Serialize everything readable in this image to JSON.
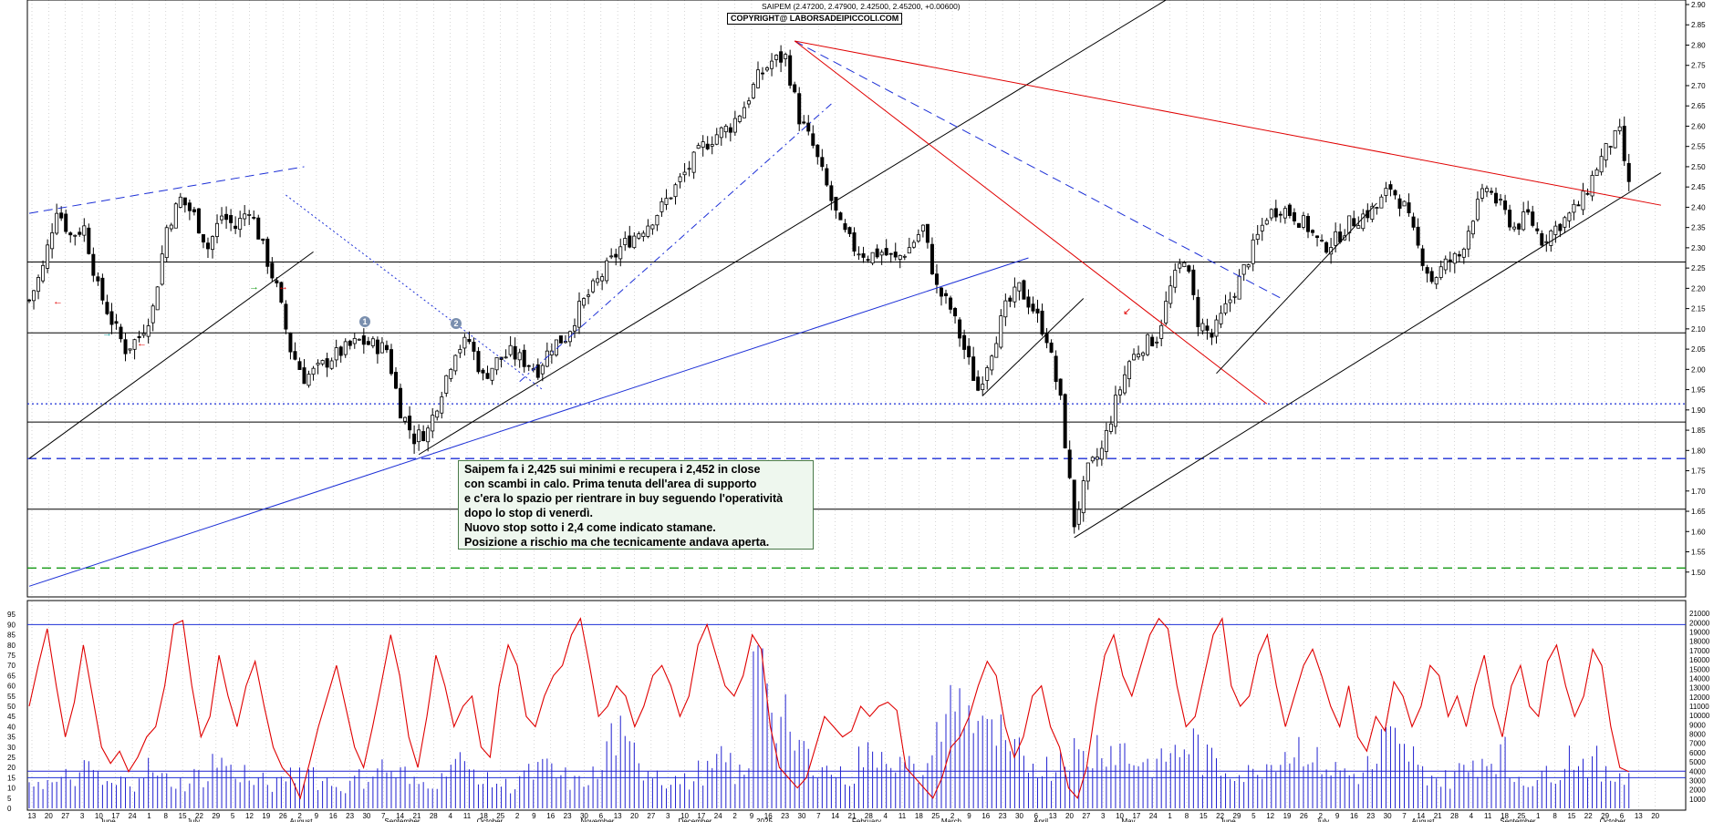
{
  "header": {
    "title": "SAIPEM (2.47200, 2.47900, 2.42500, 2.45200, +0.00600)",
    "copyright": "COPYRIGHT@ LABORSADEIPICCOLI.COM"
  },
  "annotation": {
    "lines": [
      "Saipem fa i 2,425 sui minimi e recupera i 2,452 in close",
      "con scambi in calo. Prima tenuta dell'area di supporto",
      "e c'era lo spazio per rientrare in buy seguendo l'operatività",
      "dopo lo stop di venerdì.",
      "Nuovo stop sotto i 2,4 come indicato stamane.",
      "Posizione a rischio ma che tecnicamente andava aperta."
    ]
  },
  "markers": [
    "1",
    "2"
  ],
  "colors": {
    "background": "#ffffff",
    "candles": "#000000",
    "oscillator": "#e00000",
    "volume": "#2020d0",
    "trend_black": "#000000",
    "trend_red": "#e00000",
    "trend_blue": "#1c2fd6",
    "support_dotted_blue": "#1c2fd6",
    "support_green_dashed": "#159a15",
    "grid": "#bbbbbb"
  },
  "chart_data": [
    {
      "type": "candlestick",
      "title": "SAIPEM",
      "ylim": [
        1.45,
        2.9
      ],
      "yticks": [
        1.5,
        1.55,
        1.6,
        1.65,
        1.7,
        1.75,
        1.8,
        1.85,
        1.9,
        1.95,
        2.0,
        2.05,
        2.1,
        2.15,
        2.2,
        2.25,
        2.3,
        2.35,
        2.4,
        2.45,
        2.5,
        2.55,
        2.6,
        2.65,
        2.7,
        2.75,
        2.8,
        2.85,
        2.9
      ],
      "months": [
        "June",
        "July",
        "August",
        "September",
        "October",
        "November",
        "December",
        "2025",
        "February",
        "March",
        "April",
        "May",
        "June",
        "July",
        "August",
        "September",
        "October"
      ],
      "day_ticks": [
        "13",
        "20",
        "27",
        "3",
        "10",
        "17",
        "24",
        "1",
        "8",
        "15",
        "22",
        "29",
        "5",
        "12",
        "19",
        "26",
        "2",
        "9",
        "16",
        "23",
        "30",
        "7",
        "14",
        "21",
        "28",
        "4",
        "11",
        "18",
        "25",
        "2",
        "9",
        "16",
        "23",
        "30",
        "6",
        "13",
        "20",
        "27",
        "3",
        "10",
        "17",
        "24",
        "2",
        "9",
        "16",
        "23",
        "30",
        "7",
        "14",
        "21",
        "28",
        "4",
        "11",
        "18",
        "25",
        "2",
        "9",
        "16",
        "23",
        "30",
        "6",
        "13",
        "20",
        "27",
        "3",
        "10",
        "17",
        "24",
        "1",
        "8",
        "15",
        "22",
        "29",
        "5",
        "12",
        "19",
        "26",
        "2",
        "9",
        "16",
        "23",
        "30",
        "7",
        "14",
        "21",
        "28",
        "4",
        "11",
        "18",
        "25",
        "1",
        "8",
        "15",
        "22",
        "29",
        "6",
        "13",
        "20"
      ],
      "close_path": [
        [
          0,
          2.17
        ],
        [
          3,
          2.25
        ],
        [
          6,
          2.4
        ],
        [
          9,
          2.33
        ],
        [
          12,
          2.35
        ],
        [
          15,
          2.2
        ],
        [
          18,
          2.12
        ],
        [
          21,
          2.05
        ],
        [
          24,
          2.08
        ],
        [
          27,
          2.15
        ],
        [
          30,
          2.35
        ],
        [
          33,
          2.42
        ],
        [
          36,
          2.38
        ],
        [
          39,
          2.3
        ],
        [
          42,
          2.38
        ],
        [
          45,
          2.35
        ],
        [
          48,
          2.4
        ],
        [
          51,
          2.3
        ],
        [
          54,
          2.2
        ],
        [
          57,
          2.05
        ],
        [
          60,
          1.98
        ],
        [
          63,
          2.0
        ],
        [
          66,
          2.03
        ],
        [
          69,
          2.05
        ],
        [
          72,
          2.07
        ],
        [
          75,
          2.06
        ],
        [
          78,
          2.05
        ],
        [
          81,
          1.9
        ],
        [
          84,
          1.83
        ],
        [
          87,
          1.85
        ],
        [
          90,
          1.95
        ],
        [
          93,
          2.05
        ],
        [
          96,
          2.07
        ],
        [
          99,
          1.98
        ],
        [
          102,
          2.02
        ],
        [
          105,
          2.04
        ],
        [
          108,
          2.02
        ],
        [
          111,
          2.0
        ],
        [
          114,
          2.06
        ],
        [
          117,
          2.08
        ],
        [
          120,
          2.15
        ],
        [
          123,
          2.2
        ],
        [
          126,
          2.25
        ],
        [
          129,
          2.3
        ],
        [
          132,
          2.33
        ],
        [
          135,
          2.36
        ],
        [
          138,
          2.4
        ],
        [
          141,
          2.45
        ],
        [
          144,
          2.5
        ],
        [
          147,
          2.55
        ],
        [
          150,
          2.58
        ],
        [
          153,
          2.6
        ],
        [
          156,
          2.65
        ],
        [
          159,
          2.72
        ],
        [
          162,
          2.76
        ],
        [
          165,
          2.77
        ],
        [
          168,
          2.62
        ],
        [
          171,
          2.55
        ],
        [
          174,
          2.45
        ],
        [
          177,
          2.35
        ],
        [
          180,
          2.3
        ],
        [
          183,
          2.28
        ],
        [
          186,
          2.29
        ],
        [
          189,
          2.27
        ],
        [
          192,
          2.3
        ],
        [
          195,
          2.35
        ],
        [
          198,
          2.2
        ],
        [
          201,
          2.15
        ],
        [
          204,
          2.05
        ],
        [
          207,
          1.95
        ],
        [
          210,
          2.05
        ],
        [
          213,
          2.15
        ],
        [
          216,
          2.2
        ],
        [
          219,
          2.15
        ],
        [
          222,
          2.08
        ],
        [
          225,
          1.92
        ],
        [
          228,
          1.62
        ],
        [
          231,
          1.75
        ],
        [
          234,
          1.8
        ],
        [
          237,
          1.92
        ],
        [
          240,
          2.02
        ],
        [
          243,
          2.06
        ],
        [
          246,
          2.08
        ],
        [
          249,
          2.2
        ],
        [
          252,
          2.28
        ],
        [
          255,
          2.12
        ],
        [
          258,
          2.08
        ],
        [
          261,
          2.15
        ],
        [
          264,
          2.22
        ],
        [
          267,
          2.3
        ],
        [
          270,
          2.38
        ],
        [
          273,
          2.4
        ],
        [
          276,
          2.38
        ],
        [
          279,
          2.35
        ],
        [
          282,
          2.3
        ],
        [
          285,
          2.32
        ],
        [
          288,
          2.36
        ],
        [
          291,
          2.38
        ],
        [
          294,
          2.4
        ],
        [
          297,
          2.45
        ],
        [
          300,
          2.4
        ],
        [
          303,
          2.3
        ],
        [
          306,
          2.22
        ],
        [
          309,
          2.26
        ],
        [
          312,
          2.28
        ],
        [
          315,
          2.38
        ],
        [
          318,
          2.45
        ],
        [
          321,
          2.4
        ],
        [
          324,
          2.35
        ],
        [
          327,
          2.38
        ],
        [
          330,
          2.32
        ],
        [
          333,
          2.35
        ],
        [
          336,
          2.38
        ],
        [
          339,
          2.42
        ],
        [
          342,
          2.5
        ],
        [
          345,
          2.56
        ],
        [
          347,
          2.58
        ],
        [
          349,
          2.45
        ]
      ],
      "horizontal_levels": [
        {
          "value": 2.265,
          "style": "solid",
          "color": "black"
        },
        {
          "value": 2.09,
          "style": "solid",
          "color": "black"
        },
        {
          "value": 1.915,
          "style": "dotted",
          "color": "blue"
        },
        {
          "value": 1.87,
          "style": "solid",
          "color": "black"
        },
        {
          "value": 1.78,
          "style": "dashed",
          "color": "blue"
        },
        {
          "value": 1.655,
          "style": "solid",
          "color": "black"
        },
        {
          "value": 1.51,
          "style": "dashed",
          "color": "green"
        }
      ],
      "trendlines": [
        {
          "from": [
            0,
            1.78
          ],
          "to": [
            62,
            2.29
          ],
          "color": "black",
          "style": "solid"
        },
        {
          "from": [
            85,
            1.79
          ],
          "to": [
            258,
            2.98
          ],
          "color": "black",
          "style": "solid"
        },
        {
          "from": [
            0,
            1.465
          ],
          "to": [
            218,
            2.275
          ],
          "color": "blue",
          "style": "solid"
        },
        {
          "from": [
            0,
            2.385
          ],
          "to": [
            60,
            2.5
          ],
          "color": "blue",
          "style": "dashed"
        },
        {
          "from": [
            56,
            2.43
          ],
          "to": [
            112,
            1.95
          ],
          "color": "blue",
          "style": "dotted"
        },
        {
          "from": [
            107,
            1.97
          ],
          "to": [
            175,
            2.655
          ],
          "color": "blue",
          "style": "dashdot"
        },
        {
          "from": [
            167,
            2.81
          ],
          "to": [
            274,
            2.17
          ],
          "color": "blue",
          "style": "dashed"
        },
        {
          "from": [
            167,
            2.81
          ],
          "to": [
            270,
            1.915
          ],
          "color": "red",
          "style": "solid"
        },
        {
          "from": [
            167,
            2.81
          ],
          "to": [
            356,
            2.405
          ],
          "color": "red",
          "style": "solid"
        },
        {
          "from": [
            208,
            1.935
          ],
          "to": [
            230,
            2.175
          ],
          "color": "black",
          "style": "solid"
        },
        {
          "from": [
            228,
            1.585
          ],
          "to": [
            356,
            2.485
          ],
          "color": "black",
          "style": "solid"
        },
        {
          "from": [
            259,
            1.99
          ],
          "to": [
            294,
            2.41
          ],
          "color": "black",
          "style": "solid"
        }
      ]
    },
    {
      "type": "line",
      "title": "",
      "ylim": [
        0,
        100
      ],
      "yticks": [
        0,
        5,
        10,
        15,
        20,
        25,
        30,
        35,
        40,
        45,
        50,
        55,
        60,
        65,
        70,
        75,
        80,
        85,
        90,
        95
      ],
      "levels": [
        90,
        15
      ],
      "series": [
        {
          "values": [
            50,
            70,
            88,
            60,
            35,
            52,
            80,
            55,
            30,
            22,
            28,
            18,
            25,
            35,
            40,
            60,
            90,
            92,
            60,
            35,
            45,
            75,
            55,
            40,
            60,
            72,
            50,
            30,
            20,
            15,
            5,
            22,
            40,
            55,
            70,
            50,
            30,
            20,
            40,
            62,
            85,
            65,
            35,
            20,
            45,
            75,
            60,
            40,
            50,
            55,
            30,
            25,
            60,
            80,
            70,
            45,
            40,
            55,
            65,
            70,
            85,
            93,
            70,
            45,
            50,
            60,
            55,
            40,
            50,
            65,
            70,
            60,
            45,
            55,
            80,
            90,
            75,
            60,
            55,
            65,
            85,
            78,
            40,
            20,
            15,
            10,
            15,
            30,
            45,
            40,
            35,
            38,
            50,
            45,
            50,
            52,
            48,
            20,
            15,
            10,
            5,
            15,
            30,
            35,
            45,
            60,
            72,
            65,
            40,
            25,
            35,
            55,
            60,
            40,
            30,
            10,
            5,
            20,
            50,
            75,
            85,
            65,
            55,
            70,
            85,
            93,
            88,
            60,
            40,
            45,
            65,
            85,
            93,
            60,
            50,
            55,
            75,
            85,
            60,
            40,
            55,
            70,
            78,
            65,
            50,
            40,
            60,
            35,
            28,
            45,
            38,
            62,
            55,
            40,
            50,
            70,
            65,
            45,
            55,
            40,
            60,
            75,
            50,
            35,
            60,
            70,
            50,
            45,
            72,
            80,
            60,
            45,
            55,
            78,
            70,
            40,
            20,
            18
          ]
        }
      ]
    },
    {
      "type": "bar",
      "title": "",
      "ylim": [
        0,
        22000
      ],
      "yticks": [
        0,
        1000,
        2000,
        3000,
        4000,
        5000,
        6000,
        7000,
        8000,
        9000,
        10000,
        11000,
        12000,
        13000,
        14000,
        15000,
        16000,
        17000,
        18000,
        19000,
        20000,
        21000
      ],
      "levels": [
        4000
      ],
      "values_sample": [
        3200,
        2800,
        3500,
        4200,
        2600,
        3000,
        4500,
        3300,
        2900,
        3600,
        5200,
        4100,
        3000,
        2700,
        3800,
        4300,
        3100,
        2500,
        3400,
        4600,
        3900,
        2800,
        3200,
        5500,
        4200,
        3000,
        2600,
        3800,
        4400,
        3500,
        2900,
        3700,
        8000,
        6200,
        4500,
        3300,
        3000,
        4100,
        5200,
        3800,
        21000,
        9500,
        7000,
        5400,
        4200,
        3600,
        5800,
        6600,
        4800,
        3900,
        9000,
        12000,
        10500,
        8000,
        6000,
        5200,
        4700,
        6500,
        5800,
        7200,
        6800,
        5500,
        5000,
        6200,
        7300,
        5400,
        4600,
        3900,
        5100,
        6400,
        7000,
        5200,
        4300,
        3800,
        4800,
        7500,
        6100,
        4000,
        3300,
        4200,
        5600,
        6100,
        3700,
        3200,
        4400,
        6000,
        5200,
        3600,
        4200
      ]
    }
  ]
}
